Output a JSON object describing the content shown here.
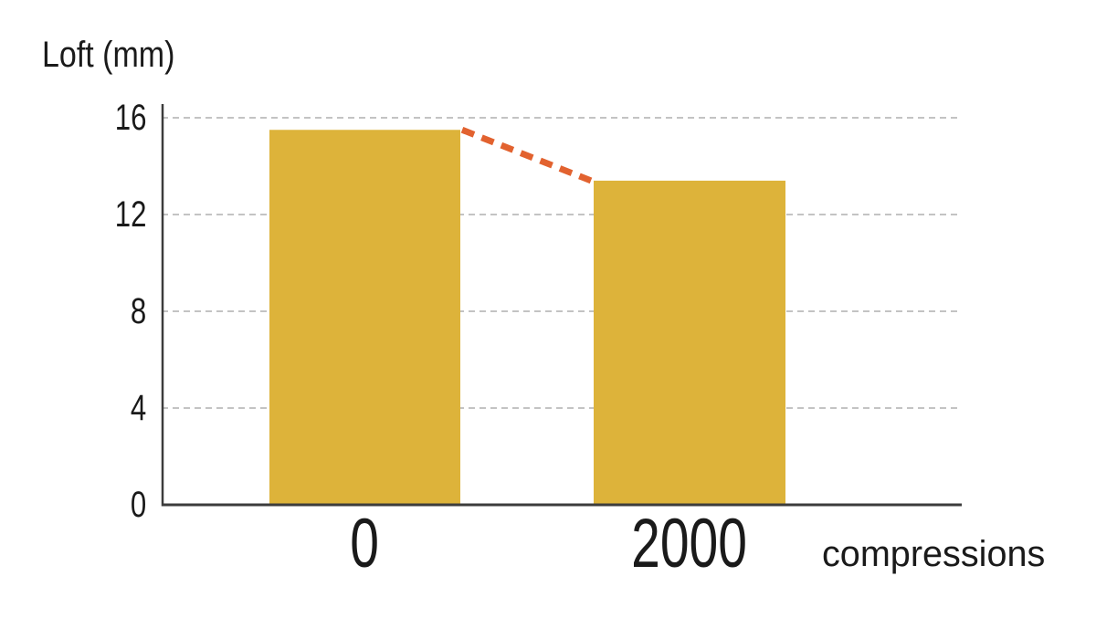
{
  "chart_data": {
    "type": "bar",
    "categories": [
      "0",
      "2000"
    ],
    "values": [
      15.5,
      13.4
    ],
    "title": "",
    "ylabel": "Loft (mm)",
    "xlabel": "compressions",
    "ylim": [
      0,
      16
    ],
    "yticks": [
      0,
      4,
      8,
      12,
      16
    ],
    "ytick_labels": [
      "0",
      "4",
      "8",
      "12",
      "16"
    ],
    "grid": "horizontal-dashed",
    "legend": "none",
    "annotations": [
      {
        "type": "dashed-connector-line",
        "description": "orange dashed line from top-right corner of bar '0' to top-left corner of bar '2000' showing loft decrease",
        "from_value": 15.5,
        "to_value": 13.4
      }
    ],
    "colors": {
      "bar": "#DDB33A",
      "connector": "#E2622F",
      "gridline": "#BBBBBB",
      "axis": "#3C3C3C",
      "text": "#1A1A1A",
      "background": "#FFFFFF"
    }
  }
}
